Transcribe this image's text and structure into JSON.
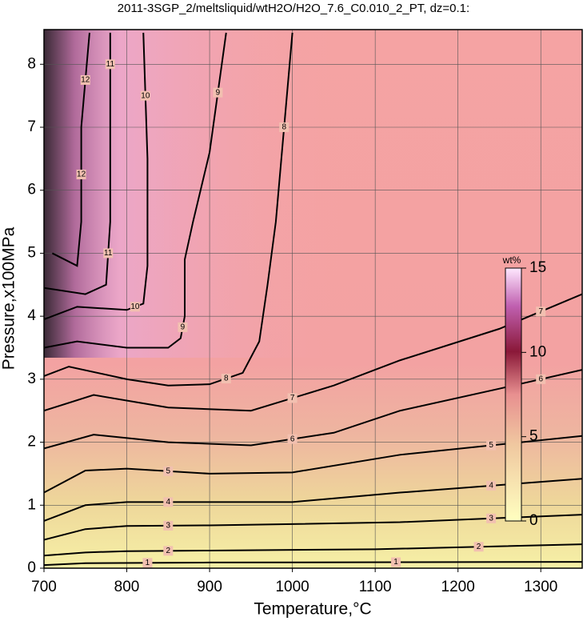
{
  "chart_data": {
    "type": "contour",
    "title": "2011-3SGP_2/meltsliquid/wtH2O/H2O_7.6_C0.010_2_PT, dz=0.1:",
    "x_label": "Temperature,°C",
    "y_label": "Pressure,x100MPa",
    "xlim": [
      700,
      1350
    ],
    "ylim": [
      0,
      8.55
    ],
    "xticks": [
      700,
      800,
      900,
      1000,
      1100,
      1200,
      1300
    ],
    "yticks": [
      0,
      1,
      2,
      3,
      4,
      5,
      6,
      7,
      8
    ],
    "grid": true,
    "contours": [
      {
        "level": 1,
        "x": [
          700,
          750,
          900,
          1350
        ],
        "y": [
          0.05,
          0.08,
          0.09,
          0.1
        ]
      },
      {
        "level": 2,
        "x": [
          700,
          750,
          800,
          900,
          1100,
          1350
        ],
        "y": [
          0.2,
          0.25,
          0.27,
          0.28,
          0.3,
          0.38
        ]
      },
      {
        "level": 3,
        "x": [
          700,
          750,
          800,
          900,
          1000,
          1130,
          1350
        ],
        "y": [
          0.45,
          0.62,
          0.67,
          0.68,
          0.7,
          0.73,
          0.85
        ]
      },
      {
        "level": 4,
        "x": [
          700,
          750,
          800,
          900,
          1000,
          1130,
          1350
        ],
        "y": [
          0.75,
          1.0,
          1.05,
          1.05,
          1.05,
          1.2,
          1.42
        ]
      },
      {
        "level": 5,
        "x": [
          700,
          750,
          800,
          900,
          1000,
          1130,
          1350
        ],
        "y": [
          1.2,
          1.55,
          1.58,
          1.5,
          1.52,
          1.8,
          2.1
        ]
      },
      {
        "level": 6,
        "x": [
          700,
          760,
          850,
          950,
          1050,
          1130,
          1250,
          1350
        ],
        "y": [
          1.9,
          2.12,
          2.0,
          1.95,
          2.15,
          2.5,
          2.85,
          3.15
        ]
      },
      {
        "level": 7,
        "x": [
          700,
          760,
          850,
          950,
          1050,
          1130,
          1250,
          1350
        ],
        "y": [
          2.5,
          2.75,
          2.55,
          2.5,
          2.9,
          3.3,
          3.8,
          4.35
        ]
      },
      {
        "level": 8,
        "x": [
          700,
          730,
          800,
          850,
          900,
          940,
          960,
          970,
          980,
          1000
        ],
        "y": [
          3.05,
          3.2,
          3.0,
          2.9,
          2.92,
          3.1,
          3.6,
          4.5,
          5.5,
          8.5
        ]
      },
      {
        "level": 9,
        "x": [
          700,
          740,
          800,
          850,
          865,
          870,
          870,
          880,
          900,
          920
        ],
        "y": [
          3.5,
          3.6,
          3.5,
          3.5,
          3.65,
          4.0,
          4.9,
          5.5,
          6.6,
          8.5
        ]
      },
      {
        "level": 10,
        "x": [
          700,
          740,
          800,
          820,
          825,
          825,
          820
        ],
        "y": [
          3.95,
          4.15,
          4.1,
          4.2,
          4.8,
          6.5,
          8.5
        ]
      },
      {
        "level": 11,
        "x": [
          700,
          750,
          775,
          780,
          780,
          780
        ],
        "y": [
          4.45,
          4.35,
          4.5,
          5.5,
          7.5,
          8.5
        ]
      },
      {
        "level": 12,
        "x": [
          710,
          740,
          745,
          745,
          755
        ],
        "y": [
          5.0,
          4.8,
          5.5,
          7.0,
          8.5
        ]
      }
    ],
    "colorbar": {
      "label": "wt%",
      "lim": [
        0,
        15
      ],
      "ticks": [
        0,
        5,
        10,
        15
      ]
    }
  }
}
